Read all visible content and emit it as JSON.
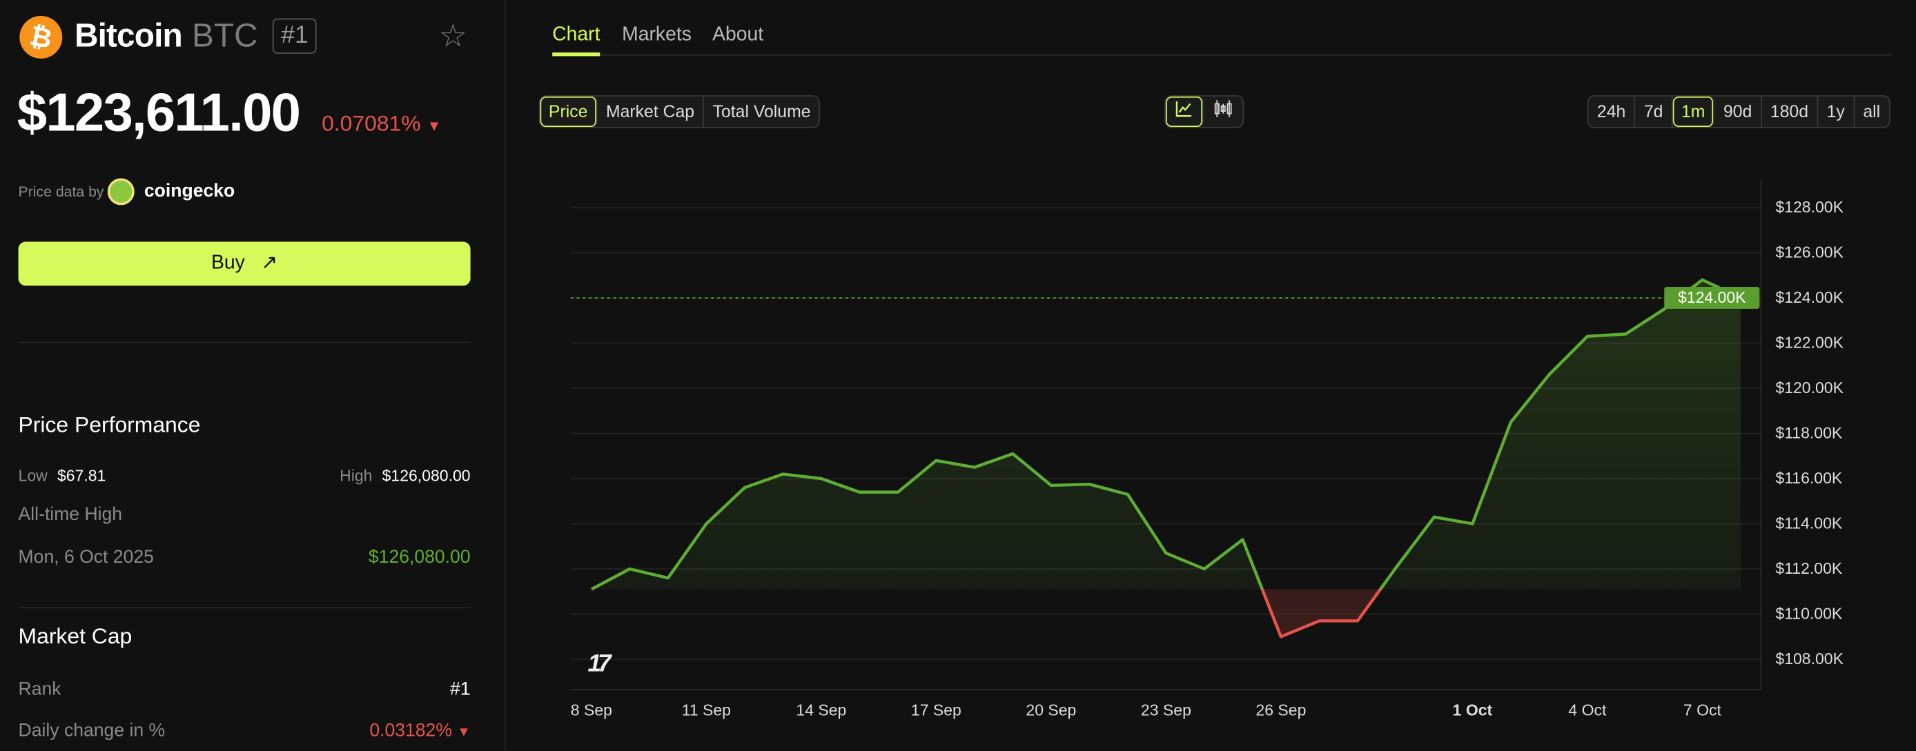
{
  "coin": {
    "name": "Bitcoin",
    "symbol": "BTC",
    "rank_badge": "#1",
    "price": "$123,611.00",
    "change": "0.07081%",
    "change_direction": "down",
    "logo_icon": "bitcoin-icon"
  },
  "price_source": {
    "label": "Price data by",
    "provider": "coingecko"
  },
  "buy": {
    "label": "Buy",
    "icon": "arrow-up-right-icon"
  },
  "performance": {
    "title": "Price Performance",
    "low_label": "Low",
    "low_value": "$67.81",
    "high_label": "High",
    "high_value": "$126,080.00",
    "ath_label": "All-time High",
    "ath_date": "Mon, 6 Oct 2025",
    "ath_value": "$126,080.00"
  },
  "market_cap": {
    "title": "Market Cap",
    "rank_label": "Rank",
    "rank_value": "#1",
    "daily_change_label": "Daily change in %",
    "daily_change_value": "0.03182%",
    "daily_change_direction": "down"
  },
  "tabs": [
    {
      "label": "Chart",
      "active": true
    },
    {
      "label": "Markets"
    },
    {
      "label": "About"
    }
  ],
  "metric_buttons": [
    {
      "label": "Price",
      "active": true
    },
    {
      "label": "Market Cap"
    },
    {
      "label": "Total Volume"
    }
  ],
  "chart_type_buttons": [
    {
      "icon": "line-chart-icon",
      "active": true
    },
    {
      "icon": "candlestick-icon"
    }
  ],
  "range_buttons": [
    {
      "label": "24h"
    },
    {
      "label": "7d"
    },
    {
      "label": "1m",
      "active": true
    },
    {
      "label": "90d"
    },
    {
      "label": "180d"
    },
    {
      "label": "1y"
    },
    {
      "label": "all"
    }
  ],
  "colors": {
    "accent": "#d6fa5b",
    "up": "#5fad32",
    "down": "#e5534b",
    "background": "#111111",
    "bitcoin": "#f7931a"
  },
  "chart_data": {
    "type": "area",
    "x_tick_labels": [
      "8 Sep",
      "11 Sep",
      "14 Sep",
      "17 Sep",
      "20 Sep",
      "23 Sep",
      "26 Sep",
      "1 Oct",
      "4 Oct",
      "7 Oct"
    ],
    "y_tick_labels": [
      "$128.00K",
      "$126.00K",
      "$124.00K",
      "$122.00K",
      "$120.00K",
      "$118.00K",
      "$116.00K",
      "$114.00K",
      "$112.00K",
      "$110.00K",
      "$108.00K"
    ],
    "ylim": [
      107,
      129
    ],
    "current_price_label": "$124.00K",
    "current_price_value": 124.0,
    "baseline_value": 111.1,
    "x": [
      "8 Sep",
      "9 Sep",
      "10 Sep",
      "11 Sep",
      "12 Sep",
      "13 Sep",
      "14 Sep",
      "15 Sep",
      "16 Sep",
      "17 Sep",
      "18 Sep",
      "19 Sep",
      "20 Sep",
      "21 Sep",
      "22 Sep",
      "23 Sep",
      "24 Sep",
      "25 Sep",
      "26 Sep",
      "27 Sep",
      "28 Sep",
      "29 Sep",
      "30 Sep",
      "1 Oct",
      "2 Oct",
      "3 Oct",
      "4 Oct",
      "5 Oct",
      "6 Oct",
      "7 Oct",
      "8 Oct"
    ],
    "values_k_usd": [
      111.1,
      112.0,
      111.6,
      114.0,
      115.6,
      116.2,
      116.0,
      115.4,
      115.4,
      116.8,
      116.5,
      117.1,
      115.7,
      115.75,
      115.3,
      112.7,
      112.0,
      113.3,
      109.0,
      109.7,
      109.7,
      112.05,
      114.3,
      114.0,
      118.5,
      120.6,
      122.3,
      122.4,
      123.5,
      124.8,
      124.0
    ],
    "grid": true,
    "watermark": "TV"
  }
}
